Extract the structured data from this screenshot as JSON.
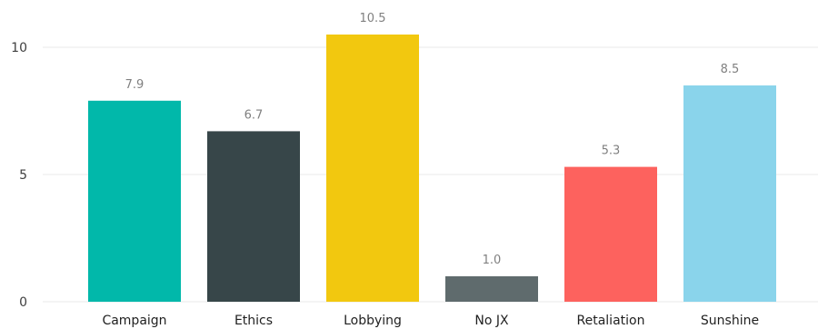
{
  "chart_data": {
    "type": "bar",
    "categories": [
      "Campaign",
      "Ethics",
      "Lobbying",
      "No JX",
      "Retaliation",
      "Sunshine"
    ],
    "values": [
      7.9,
      6.7,
      10.5,
      1.0,
      5.3,
      8.5
    ],
    "value_labels": [
      "7.9",
      "6.7",
      "10.5",
      "1.0",
      "5.3",
      "8.5"
    ],
    "colors": [
      "#01b8aa",
      "#374649",
      "#f2c80f",
      "#5f6b6d",
      "#fd625e",
      "#8ad4eb"
    ],
    "title": "",
    "xlabel": "",
    "ylabel": "",
    "ylim": [
      0,
      11
    ],
    "yticks": [
      0,
      5,
      10
    ],
    "ytick_labels": [
      "0",
      "5",
      "10"
    ],
    "grid": true,
    "grid_color": "#e8e8e8",
    "legend": "none"
  }
}
